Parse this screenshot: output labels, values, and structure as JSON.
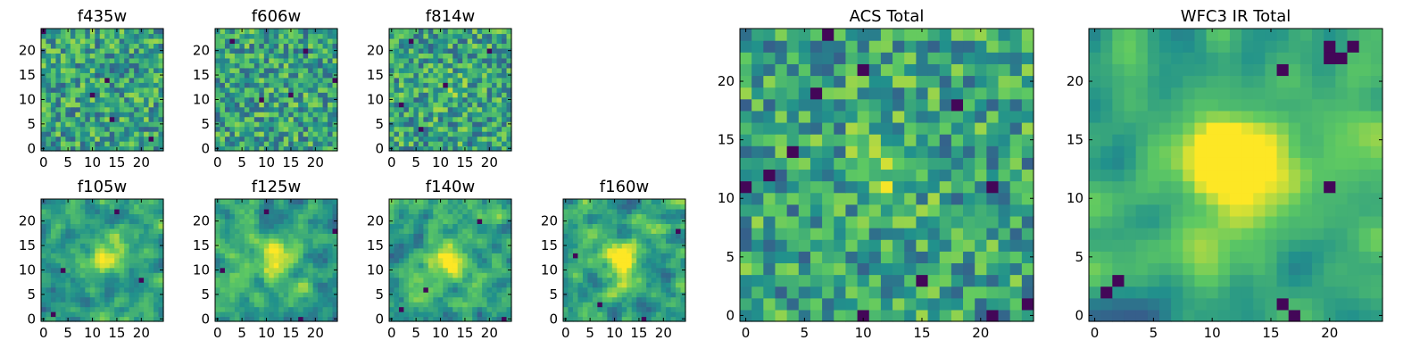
{
  "figure": {
    "colormap": "viridis",
    "colormap_stops": [
      "#440154",
      "#3b528b",
      "#21918c",
      "#5ec962",
      "#fde725"
    ],
    "grid_size": 25,
    "panels": [
      {
        "id": "f435w",
        "title": "f435w",
        "grid_size": 25,
        "x_ticks": [
          0,
          5,
          10,
          15,
          20
        ],
        "y_ticks": [
          0,
          5,
          10,
          15,
          20
        ],
        "peak": [
          12,
          12
        ],
        "peak_strength": 0.0,
        "smooth": 0,
        "seed": 11,
        "dark_pixels": [
          [
            0,
            24
          ],
          [
            10,
            11
          ],
          [
            13,
            14
          ],
          [
            14,
            6
          ],
          [
            22,
            2
          ]
        ]
      },
      {
        "id": "f606w",
        "title": "f606w",
        "grid_size": 25,
        "x_ticks": [
          0,
          5,
          10,
          15,
          20
        ],
        "y_ticks": [
          0,
          5,
          10,
          15,
          20
        ],
        "peak": [
          12,
          12
        ],
        "peak_strength": 0.05,
        "smooth": 0,
        "seed": 23,
        "dark_pixels": [
          [
            18,
            20
          ],
          [
            15,
            11
          ],
          [
            9,
            10
          ],
          [
            3,
            22
          ],
          [
            24,
            14
          ]
        ]
      },
      {
        "id": "f814w",
        "title": "f814w",
        "grid_size": 25,
        "x_ticks": [
          0,
          5,
          10,
          15,
          20
        ],
        "y_ticks": [
          0,
          5,
          10,
          15,
          20
        ],
        "peak": [
          12,
          12
        ],
        "peak_strength": 0.1,
        "smooth": 0,
        "seed": 37,
        "dark_pixels": [
          [
            4,
            22
          ],
          [
            20,
            20
          ],
          [
            11,
            13
          ],
          [
            6,
            4
          ],
          [
            2,
            9
          ]
        ]
      },
      {
        "id": "f105w",
        "title": "f105w",
        "grid_size": 25,
        "x_ticks": [
          0,
          5,
          10,
          15,
          20
        ],
        "y_ticks": [
          0,
          5,
          10,
          15,
          20
        ],
        "peak": [
          13,
          13
        ],
        "peak_strength": 0.45,
        "smooth": 1,
        "seed": 41,
        "dark_pixels": [
          [
            15,
            22
          ],
          [
            2,
            1
          ],
          [
            20,
            8
          ],
          [
            4,
            10
          ]
        ]
      },
      {
        "id": "f125w",
        "title": "f125w",
        "grid_size": 25,
        "x_ticks": [
          0,
          5,
          10,
          15,
          20
        ],
        "y_ticks": [
          0,
          5,
          10,
          15,
          20
        ],
        "peak": [
          12,
          12
        ],
        "peak_strength": 0.4,
        "smooth": 1,
        "seed": 53,
        "dark_pixels": [
          [
            17,
            0
          ],
          [
            10,
            22
          ],
          [
            24,
            18
          ],
          [
            1,
            10
          ]
        ]
      },
      {
        "id": "f140w",
        "title": "f140w",
        "grid_size": 25,
        "x_ticks": [
          0,
          5,
          10,
          15,
          20
        ],
        "y_ticks": [
          0,
          5,
          10,
          15,
          20
        ],
        "peak": [
          11,
          12
        ],
        "peak_strength": 0.45,
        "smooth": 1,
        "seed": 67,
        "dark_pixels": [
          [
            2,
            2
          ],
          [
            23,
            0
          ],
          [
            18,
            20
          ],
          [
            7,
            6
          ]
        ]
      },
      {
        "id": "f160w",
        "title": "f160w",
        "grid_size": 25,
        "x_ticks": [
          0,
          5,
          10,
          15,
          20
        ],
        "y_ticks": [
          0,
          5,
          10,
          15,
          20
        ],
        "peak": [
          12,
          12
        ],
        "peak_strength": 0.5,
        "smooth": 1,
        "seed": 71,
        "dark_pixels": [
          [
            16,
            0
          ],
          [
            23,
            18
          ],
          [
            7,
            3
          ],
          [
            2,
            13
          ]
        ]
      },
      {
        "id": "acs_total",
        "title": "ACS Total",
        "grid_size": 25,
        "x_ticks": [
          0,
          5,
          10,
          15,
          20
        ],
        "y_ticks": [
          0,
          5,
          10,
          15,
          20
        ],
        "peak": [
          12,
          12
        ],
        "peak_strength": 0.15,
        "smooth": 0,
        "seed": 89,
        "dark_pixels": [
          [
            7,
            24
          ],
          [
            10,
            21
          ],
          [
            6,
            19
          ],
          [
            18,
            18
          ],
          [
            4,
            14
          ],
          [
            2,
            12
          ],
          [
            21,
            11
          ],
          [
            15,
            3
          ],
          [
            24,
            1
          ],
          [
            10,
            0
          ],
          [
            21,
            0
          ],
          [
            0,
            11
          ]
        ]
      },
      {
        "id": "wfc3_ir_total",
        "title": "WFC3 IR Total",
        "grid_size": 25,
        "x_ticks": [
          0,
          5,
          10,
          15,
          20
        ],
        "y_ticks": [
          0,
          5,
          10,
          15,
          20
        ],
        "peak": [
          12,
          13
        ],
        "peak_strength": 0.75,
        "smooth": 2,
        "seed": 97,
        "dark_pixels": [
          [
            20,
            23
          ],
          [
            21,
            22
          ],
          [
            22,
            23
          ],
          [
            20,
            22
          ],
          [
            16,
            21
          ],
          [
            20,
            11
          ],
          [
            2,
            3
          ],
          [
            1,
            2
          ],
          [
            16,
            1
          ],
          [
            17,
            0
          ]
        ]
      }
    ]
  }
}
